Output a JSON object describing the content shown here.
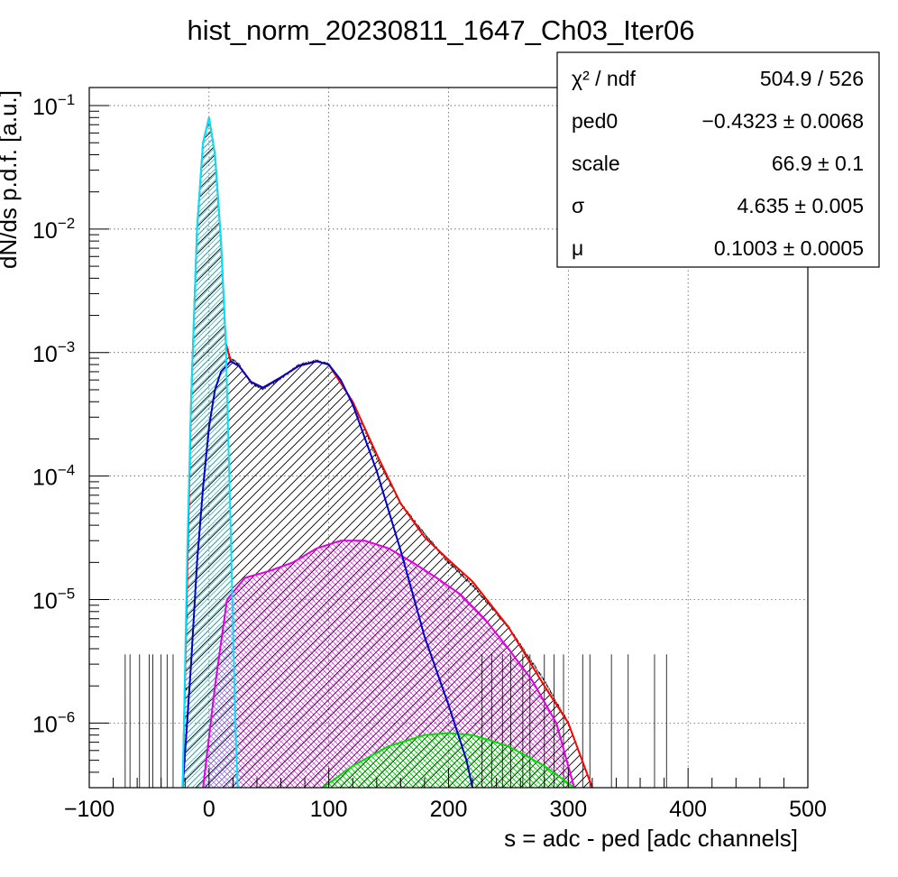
{
  "chart_data": {
    "type": "line",
    "title": "hist_norm_20230811_1647_Ch03_Iter06",
    "xlabel": "s = adc - ped [adc channels]",
    "ylabel": "dN/ds p.d.f. [a.u.]",
    "xlim": [
      -100,
      500
    ],
    "ylim": [
      3e-07,
      0.14
    ],
    "yscale": "log",
    "grid": true,
    "x_ticks": [
      {
        "value": -100,
        "label": "−100"
      },
      {
        "value": 0,
        "label": "0"
      },
      {
        "value": 100,
        "label": "100"
      },
      {
        "value": 200,
        "label": "200"
      },
      {
        "value": 300,
        "label": "300"
      },
      {
        "value": 400,
        "label": "400"
      },
      {
        "value": 500,
        "label": "500"
      }
    ],
    "y_ticks": [
      {
        "value": 1e-06,
        "base": "10",
        "exp": "−6"
      },
      {
        "value": 1e-05,
        "base": "10",
        "exp": "−5"
      },
      {
        "value": 0.0001,
        "base": "10",
        "exp": "−4"
      },
      {
        "value": 0.001,
        "base": "10",
        "exp": "−3"
      },
      {
        "value": 0.01,
        "base": "10",
        "exp": "−2"
      },
      {
        "value": 0.1,
        "base": "10",
        "exp": "−1"
      }
    ],
    "stats": {
      "position": "top-right",
      "rows": [
        {
          "label": "χ² / ndf",
          "value": "504.9 / 526"
        },
        {
          "label": "ped0",
          "value": "−0.4323 ± 0.0068"
        },
        {
          "label": "scale",
          "value": "66.9 ± 0.1"
        },
        {
          "label": "σ",
          "value": "4.635 ± 0.005"
        },
        {
          "label": "μ",
          "value": "0.1003 ± 0.0005"
        }
      ]
    },
    "series": [
      {
        "color": "#ff0000",
        "role": "total fit",
        "points": [
          [
            -22,
            3e-07
          ],
          [
            -15,
            0.0004
          ],
          [
            -10,
            0.01
          ],
          [
            -5,
            0.05
          ],
          [
            0,
            0.08
          ],
          [
            5,
            0.04
          ],
          [
            10,
            0.008
          ],
          [
            14,
            0.0012
          ],
          [
            18,
            0.00085
          ],
          [
            25,
            0.00078
          ],
          [
            35,
            0.00058
          ],
          [
            45,
            0.00052
          ],
          [
            60,
            0.00063
          ],
          [
            75,
            0.00078
          ],
          [
            90,
            0.00085
          ],
          [
            100,
            0.0008
          ],
          [
            120,
            0.0004
          ],
          [
            140,
            0.00015
          ],
          [
            160,
            6e-05
          ],
          [
            180,
            3.2e-05
          ],
          [
            200,
            2.1e-05
          ],
          [
            220,
            1.4e-05
          ],
          [
            250,
            6e-06
          ],
          [
            280,
            2e-06
          ],
          [
            300,
            1e-06
          ],
          [
            320,
            3e-07
          ]
        ]
      },
      {
        "color": "#0000cc",
        "role": "signal component",
        "points": [
          [
            -22,
            3e-07
          ],
          [
            -15,
            3e-06
          ],
          [
            -10,
            2e-05
          ],
          [
            -5,
            8e-05
          ],
          [
            0,
            0.00025
          ],
          [
            5,
            0.0005
          ],
          [
            10,
            0.0007
          ],
          [
            18,
            0.00085
          ],
          [
            25,
            0.00078
          ],
          [
            35,
            0.00058
          ],
          [
            45,
            0.00052
          ],
          [
            60,
            0.00063
          ],
          [
            75,
            0.00078
          ],
          [
            90,
            0.00085
          ],
          [
            100,
            0.0008
          ],
          [
            110,
            0.0006
          ],
          [
            120,
            0.00038
          ],
          [
            140,
            0.00011
          ],
          [
            160,
            2.5e-05
          ],
          [
            180,
            5e-06
          ],
          [
            200,
            1.4e-06
          ],
          [
            215,
            5e-07
          ],
          [
            220,
            3e-07
          ]
        ]
      },
      {
        "color": "#00e5ff",
        "role": "pedestal component",
        "points": [
          [
            -22,
            3e-07
          ],
          [
            -18,
            3e-05
          ],
          [
            -15,
            0.0004
          ],
          [
            -10,
            0.01
          ],
          [
            -5,
            0.05
          ],
          [
            0,
            0.08
          ],
          [
            5,
            0.04
          ],
          [
            10,
            0.008
          ],
          [
            14,
            0.0012
          ],
          [
            18,
            4e-05
          ],
          [
            22,
            1e-06
          ],
          [
            24,
            3e-07
          ]
        ]
      },
      {
        "color": "#e000e0",
        "role": "two-photoelectron component",
        "points": [
          [
            -5,
            3e-07
          ],
          [
            5,
            2e-06
          ],
          [
            15,
            1e-05
          ],
          [
            30,
            1.5e-05
          ],
          [
            50,
            1.7e-05
          ],
          [
            70,
            2e-05
          ],
          [
            90,
            2.6e-05
          ],
          [
            110,
            3e-05
          ],
          [
            130,
            3e-05
          ],
          [
            150,
            2.6e-05
          ],
          [
            170,
            2e-05
          ],
          [
            190,
            1.5e-05
          ],
          [
            210,
            1.1e-05
          ],
          [
            230,
            7e-06
          ],
          [
            250,
            4e-06
          ],
          [
            270,
            2.2e-06
          ],
          [
            290,
            1e-06
          ],
          [
            305,
            3e-07
          ]
        ]
      },
      {
        "color": "#00dd00",
        "role": "three-photoelectron component",
        "points": [
          [
            95,
            3e-07
          ],
          [
            120,
            4.5e-07
          ],
          [
            150,
            6.5e-07
          ],
          [
            180,
            8e-07
          ],
          [
            200,
            8.3e-07
          ],
          [
            220,
            8e-07
          ],
          [
            250,
            6.5e-07
          ],
          [
            280,
            4.5e-07
          ],
          [
            305,
            3e-07
          ]
        ]
      },
      {
        "color": "#000000",
        "role": "data histogram",
        "points": [
          [
            -20,
            5e-07
          ],
          [
            -15,
            0.0004
          ],
          [
            -10,
            0.01
          ],
          [
            -5,
            0.05
          ],
          [
            0,
            0.08
          ],
          [
            5,
            0.04
          ],
          [
            10,
            0.008
          ],
          [
            14,
            0.0012
          ],
          [
            18,
            0.0009
          ],
          [
            25,
            0.0008
          ],
          [
            35,
            0.00057
          ],
          [
            45,
            0.00051
          ],
          [
            60,
            0.00062
          ],
          [
            75,
            0.00079
          ],
          [
            90,
            0.00086
          ],
          [
            100,
            0.0008
          ],
          [
            120,
            0.0004
          ],
          [
            140,
            0.00014
          ],
          [
            160,
            6e-05
          ],
          [
            180,
            3.4e-05
          ],
          [
            200,
            2e-05
          ],
          [
            220,
            1.3e-05
          ],
          [
            250,
            6e-06
          ],
          [
            280,
            2.2e-06
          ],
          [
            300,
            1e-06
          ]
        ]
      }
    ]
  }
}
